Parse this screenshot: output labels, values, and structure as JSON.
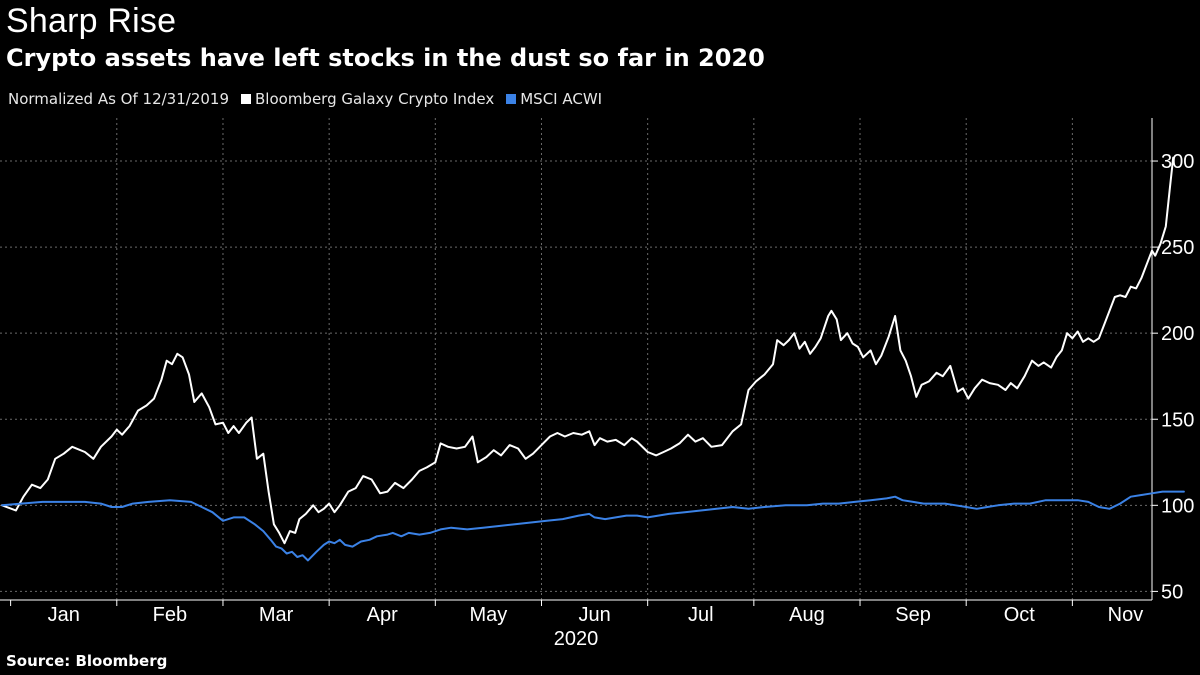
{
  "title": "Sharp Rise",
  "subtitle": "Crypto assets have left stocks in the dust so far in 2020",
  "legend": {
    "note": "Normalized As Of 12/31/2019",
    "items": [
      {
        "label": "Bloomberg Galaxy Crypto Index",
        "color": "#ffffff"
      },
      {
        "label": "MSCI ACWI",
        "color": "#3b82e6"
      }
    ]
  },
  "source": "Source: Bloomberg",
  "chart_data": {
    "type": "line",
    "x_unit": "months since Jan 1, 2020",
    "xlabel": "2020",
    "ylabel": "",
    "ylim": [
      45,
      325
    ],
    "xlim": [
      -0.1,
      10.75
    ],
    "yticks": [
      50,
      100,
      150,
      200,
      250,
      300
    ],
    "xticks": [
      {
        "label": "Jan",
        "x": 0.5
      },
      {
        "label": "Feb",
        "x": 1.5
      },
      {
        "label": "Mar",
        "x": 2.5
      },
      {
        "label": "Apr",
        "x": 3.5
      },
      {
        "label": "May",
        "x": 4.5
      },
      {
        "label": "Jun",
        "x": 5.5
      },
      {
        "label": "Jul",
        "x": 6.5
      },
      {
        "label": "Aug",
        "x": 7.5
      },
      {
        "label": "Sep",
        "x": 8.5
      },
      {
        "label": "Oct",
        "x": 9.5
      },
      {
        "label": "Nov",
        "x": 10.5
      }
    ],
    "grid": true,
    "y_axis_side": "right",
    "series": [
      {
        "name": "Bloomberg Galaxy Crypto Index",
        "color": "#ffffff",
        "points": [
          [
            -0.08,
            100
          ],
          [
            0.05,
            97
          ],
          [
            0.12,
            105
          ],
          [
            0.2,
            112
          ],
          [
            0.28,
            110
          ],
          [
            0.35,
            115
          ],
          [
            0.42,
            127
          ],
          [
            0.5,
            130
          ],
          [
            0.58,
            134
          ],
          [
            0.7,
            131
          ],
          [
            0.78,
            127
          ],
          [
            0.85,
            134
          ],
          [
            0.95,
            140
          ],
          [
            1.0,
            144
          ],
          [
            1.05,
            141
          ],
          [
            1.12,
            146
          ],
          [
            1.2,
            155
          ],
          [
            1.28,
            158
          ],
          [
            1.35,
            162
          ],
          [
            1.42,
            173
          ],
          [
            1.47,
            184
          ],
          [
            1.52,
            182
          ],
          [
            1.57,
            188
          ],
          [
            1.62,
            186
          ],
          [
            1.68,
            176
          ],
          [
            1.73,
            160
          ],
          [
            1.8,
            165
          ],
          [
            1.87,
            157
          ],
          [
            1.93,
            147
          ],
          [
            2.0,
            148
          ],
          [
            2.05,
            142
          ],
          [
            2.1,
            146
          ],
          [
            2.15,
            142
          ],
          [
            2.22,
            148
          ],
          [
            2.27,
            151
          ],
          [
            2.32,
            127
          ],
          [
            2.38,
            130
          ],
          [
            2.43,
            108
          ],
          [
            2.48,
            89
          ],
          [
            2.53,
            84
          ],
          [
            2.58,
            78
          ],
          [
            2.63,
            85
          ],
          [
            2.68,
            84
          ],
          [
            2.72,
            92
          ],
          [
            2.78,
            95
          ],
          [
            2.85,
            100
          ],
          [
            2.9,
            96
          ],
          [
            2.95,
            98
          ],
          [
            3.0,
            101
          ],
          [
            3.05,
            96
          ],
          [
            3.1,
            100
          ],
          [
            3.18,
            108
          ],
          [
            3.25,
            110
          ],
          [
            3.32,
            117
          ],
          [
            3.4,
            115
          ],
          [
            3.48,
            107
          ],
          [
            3.55,
            108
          ],
          [
            3.62,
            113
          ],
          [
            3.7,
            110
          ],
          [
            3.78,
            115
          ],
          [
            3.85,
            120
          ],
          [
            3.92,
            122
          ],
          [
            4.0,
            125
          ],
          [
            4.05,
            136
          ],
          [
            4.12,
            134
          ],
          [
            4.2,
            133
          ],
          [
            4.28,
            134
          ],
          [
            4.35,
            140
          ],
          [
            4.4,
            125
          ],
          [
            4.48,
            128
          ],
          [
            4.55,
            132
          ],
          [
            4.62,
            129
          ],
          [
            4.7,
            135
          ],
          [
            4.78,
            133
          ],
          [
            4.85,
            127
          ],
          [
            4.92,
            130
          ],
          [
            5.0,
            135
          ],
          [
            5.08,
            140
          ],
          [
            5.15,
            142
          ],
          [
            5.22,
            140
          ],
          [
            5.3,
            142
          ],
          [
            5.38,
            141
          ],
          [
            5.45,
            143
          ],
          [
            5.5,
            135
          ],
          [
            5.55,
            139
          ],
          [
            5.62,
            137
          ],
          [
            5.7,
            138
          ],
          [
            5.78,
            135
          ],
          [
            5.85,
            139
          ],
          [
            5.9,
            137
          ],
          [
            6.0,
            131
          ],
          [
            6.08,
            129
          ],
          [
            6.15,
            131
          ],
          [
            6.22,
            133
          ],
          [
            6.3,
            136
          ],
          [
            6.38,
            141
          ],
          [
            6.45,
            137
          ],
          [
            6.52,
            139
          ],
          [
            6.6,
            134
          ],
          [
            6.7,
            135
          ],
          [
            6.8,
            143
          ],
          [
            6.88,
            147
          ],
          [
            6.95,
            167
          ],
          [
            7.02,
            172
          ],
          [
            7.1,
            176
          ],
          [
            7.18,
            182
          ],
          [
            7.22,
            196
          ],
          [
            7.28,
            193
          ],
          [
            7.33,
            196
          ],
          [
            7.38,
            200
          ],
          [
            7.43,
            191
          ],
          [
            7.48,
            195
          ],
          [
            7.53,
            188
          ],
          [
            7.58,
            192
          ],
          [
            7.63,
            197
          ],
          [
            7.7,
            210
          ],
          [
            7.73,
            213
          ],
          [
            7.78,
            208
          ],
          [
            7.82,
            196
          ],
          [
            7.88,
            200
          ],
          [
            7.93,
            194
          ],
          [
            7.98,
            192
          ],
          [
            8.03,
            186
          ],
          [
            8.1,
            190
          ],
          [
            8.15,
            182
          ],
          [
            8.2,
            187
          ],
          [
            8.27,
            198
          ],
          [
            8.33,
            210
          ],
          [
            8.38,
            190
          ],
          [
            8.43,
            184
          ],
          [
            8.48,
            175
          ],
          [
            8.53,
            163
          ],
          [
            8.58,
            170
          ],
          [
            8.65,
            172
          ],
          [
            8.72,
            177
          ],
          [
            8.78,
            175
          ],
          [
            8.85,
            181
          ],
          [
            8.92,
            166
          ],
          [
            8.97,
            168
          ],
          [
            9.02,
            162
          ],
          [
            9.08,
            168
          ],
          [
            9.15,
            173
          ],
          [
            9.22,
            171
          ],
          [
            9.3,
            170
          ],
          [
            9.37,
            167
          ],
          [
            9.42,
            171
          ],
          [
            9.48,
            168
          ],
          [
            9.55,
            175
          ],
          [
            9.62,
            184
          ],
          [
            9.68,
            181
          ],
          [
            9.73,
            183
          ],
          [
            9.8,
            180
          ],
          [
            9.85,
            186
          ],
          [
            9.9,
            190
          ],
          [
            9.95,
            200
          ],
          [
            10.0,
            197
          ],
          [
            10.05,
            201
          ],
          [
            10.1,
            195
          ],
          [
            10.15,
            197
          ],
          [
            10.2,
            195
          ],
          [
            10.25,
            197
          ],
          [
            10.3,
            205
          ],
          [
            10.35,
            213
          ],
          [
            10.4,
            221
          ],
          [
            10.45,
            222
          ],
          [
            10.5,
            221
          ],
          [
            10.55,
            227
          ],
          [
            10.6,
            226
          ],
          [
            10.65,
            232
          ],
          [
            10.7,
            240
          ],
          [
            10.75,
            248
          ],
          [
            10.78,
            245
          ],
          [
            10.83,
            252
          ],
          [
            10.88,
            262
          ],
          [
            10.92,
            285
          ],
          [
            10.95,
            302
          ]
        ]
      },
      {
        "name": "MSCI ACWI",
        "color": "#3b82e6",
        "points": [
          [
            -0.08,
            100
          ],
          [
            0.1,
            101
          ],
          [
            0.3,
            102
          ],
          [
            0.5,
            102
          ],
          [
            0.7,
            102
          ],
          [
            0.85,
            101
          ],
          [
            0.95,
            99
          ],
          [
            1.05,
            99
          ],
          [
            1.15,
            101
          ],
          [
            1.3,
            102
          ],
          [
            1.5,
            103
          ],
          [
            1.7,
            102
          ],
          [
            1.8,
            99
          ],
          [
            1.9,
            96
          ],
          [
            2.0,
            91
          ],
          [
            2.1,
            93
          ],
          [
            2.2,
            93
          ],
          [
            2.3,
            89
          ],
          [
            2.38,
            85
          ],
          [
            2.45,
            80
          ],
          [
            2.5,
            76
          ],
          [
            2.55,
            75
          ],
          [
            2.6,
            72
          ],
          [
            2.65,
            73
          ],
          [
            2.7,
            70
          ],
          [
            2.75,
            71
          ],
          [
            2.8,
            68
          ],
          [
            2.88,
            73
          ],
          [
            2.95,
            77
          ],
          [
            3.0,
            79
          ],
          [
            3.05,
            78
          ],
          [
            3.1,
            80
          ],
          [
            3.15,
            77
          ],
          [
            3.22,
            76
          ],
          [
            3.3,
            79
          ],
          [
            3.38,
            80
          ],
          [
            3.45,
            82
          ],
          [
            3.55,
            83
          ],
          [
            3.6,
            84
          ],
          [
            3.68,
            82
          ],
          [
            3.75,
            84
          ],
          [
            3.85,
            83
          ],
          [
            3.95,
            84
          ],
          [
            4.05,
            86
          ],
          [
            4.15,
            87
          ],
          [
            4.3,
            86
          ],
          [
            4.45,
            87
          ],
          [
            4.6,
            88
          ],
          [
            4.75,
            89
          ],
          [
            4.9,
            90
          ],
          [
            5.05,
            91
          ],
          [
            5.2,
            92
          ],
          [
            5.35,
            94
          ],
          [
            5.45,
            95
          ],
          [
            5.5,
            93
          ],
          [
            5.6,
            92
          ],
          [
            5.7,
            93
          ],
          [
            5.8,
            94
          ],
          [
            5.9,
            94
          ],
          [
            6.0,
            93
          ],
          [
            6.1,
            94
          ],
          [
            6.2,
            95
          ],
          [
            6.35,
            96
          ],
          [
            6.5,
            97
          ],
          [
            6.65,
            98
          ],
          [
            6.8,
            99
          ],
          [
            6.95,
            98
          ],
          [
            7.1,
            99
          ],
          [
            7.3,
            100
          ],
          [
            7.5,
            100
          ],
          [
            7.65,
            101
          ],
          [
            7.8,
            101
          ],
          [
            7.95,
            102
          ],
          [
            8.1,
            103
          ],
          [
            8.25,
            104
          ],
          [
            8.33,
            105
          ],
          [
            8.4,
            103
          ],
          [
            8.5,
            102
          ],
          [
            8.6,
            101
          ],
          [
            8.7,
            101
          ],
          [
            8.8,
            101
          ],
          [
            8.9,
            100
          ],
          [
            9.0,
            99
          ],
          [
            9.1,
            98
          ],
          [
            9.2,
            99
          ],
          [
            9.3,
            100
          ],
          [
            9.45,
            101
          ],
          [
            9.6,
            101
          ],
          [
            9.75,
            103
          ],
          [
            9.85,
            103
          ],
          [
            9.95,
            103
          ],
          [
            10.05,
            103
          ],
          [
            10.15,
            102
          ],
          [
            10.25,
            99
          ],
          [
            10.35,
            98
          ],
          [
            10.45,
            101
          ],
          [
            10.55,
            105
          ],
          [
            10.65,
            106
          ],
          [
            10.75,
            107
          ],
          [
            10.85,
            108
          ],
          [
            10.95,
            108
          ],
          [
            11.05,
            108
          ]
        ]
      }
    ]
  }
}
